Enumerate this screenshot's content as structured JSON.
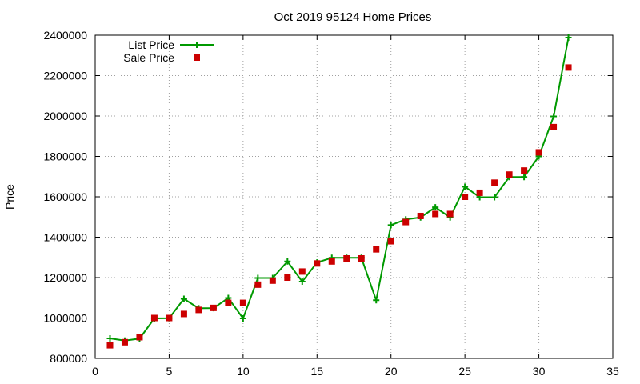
{
  "chart_data": {
    "type": "line",
    "title": "Oct 2019 95124 Home Prices",
    "xlabel": "",
    "ylabel": "Price",
    "xlim": [
      0,
      35
    ],
    "ylim": [
      800000,
      2400000
    ],
    "xticks": [
      0,
      5,
      10,
      15,
      20,
      25,
      30,
      35
    ],
    "yticks": [
      800000,
      1000000,
      1200000,
      1400000,
      1600000,
      1800000,
      2000000,
      2200000,
      2400000
    ],
    "xtick_labels": [
      "0",
      "5",
      "10",
      "15",
      "20",
      "25",
      "30",
      "35"
    ],
    "ytick_labels": [
      "800000",
      "1000000",
      "1200000",
      "1400000",
      "1600000",
      "1800000",
      "2000000",
      "2200000",
      "2400000"
    ],
    "grid": true,
    "legend_position": "top-left",
    "series": [
      {
        "name": "List Price",
        "style": "line-with-plus-markers",
        "color": "#009900",
        "x": [
          1,
          2,
          3,
          4,
          5,
          6,
          7,
          8,
          9,
          10,
          11,
          12,
          13,
          14,
          15,
          16,
          17,
          18,
          19,
          20,
          21,
          22,
          23,
          24,
          25,
          26,
          27,
          28,
          29,
          30,
          31,
          32
        ],
        "values": [
          899000,
          888000,
          898000,
          998000,
          999000,
          1095000,
          1048000,
          1049000,
          1099000,
          998000,
          1198000,
          1198000,
          1280000,
          1180000,
          1275000,
          1298000,
          1298000,
          1298000,
          1088000,
          1460000,
          1488000,
          1498000,
          1548000,
          1498000,
          1650000,
          1598000,
          1598000,
          1698000,
          1698000,
          1800000,
          1998000,
          2388000
        ]
      },
      {
        "name": "Sale Price",
        "style": "square-markers",
        "color": "#cc0000",
        "x": [
          1,
          2,
          3,
          4,
          5,
          6,
          7,
          8,
          9,
          10,
          11,
          12,
          13,
          14,
          15,
          16,
          17,
          18,
          19,
          20,
          21,
          22,
          23,
          24,
          25,
          26,
          27,
          28,
          29,
          30,
          31,
          32
        ],
        "values": [
          865000,
          880000,
          905000,
          1000000,
          1000000,
          1020000,
          1040000,
          1050000,
          1075000,
          1075000,
          1165000,
          1185000,
          1200000,
          1230000,
          1270000,
          1280000,
          1295000,
          1295000,
          1340000,
          1380000,
          1475000,
          1505000,
          1515000,
          1515000,
          1600000,
          1620000,
          1670000,
          1710000,
          1730000,
          1820000,
          1945000,
          2240000
        ]
      }
    ]
  }
}
